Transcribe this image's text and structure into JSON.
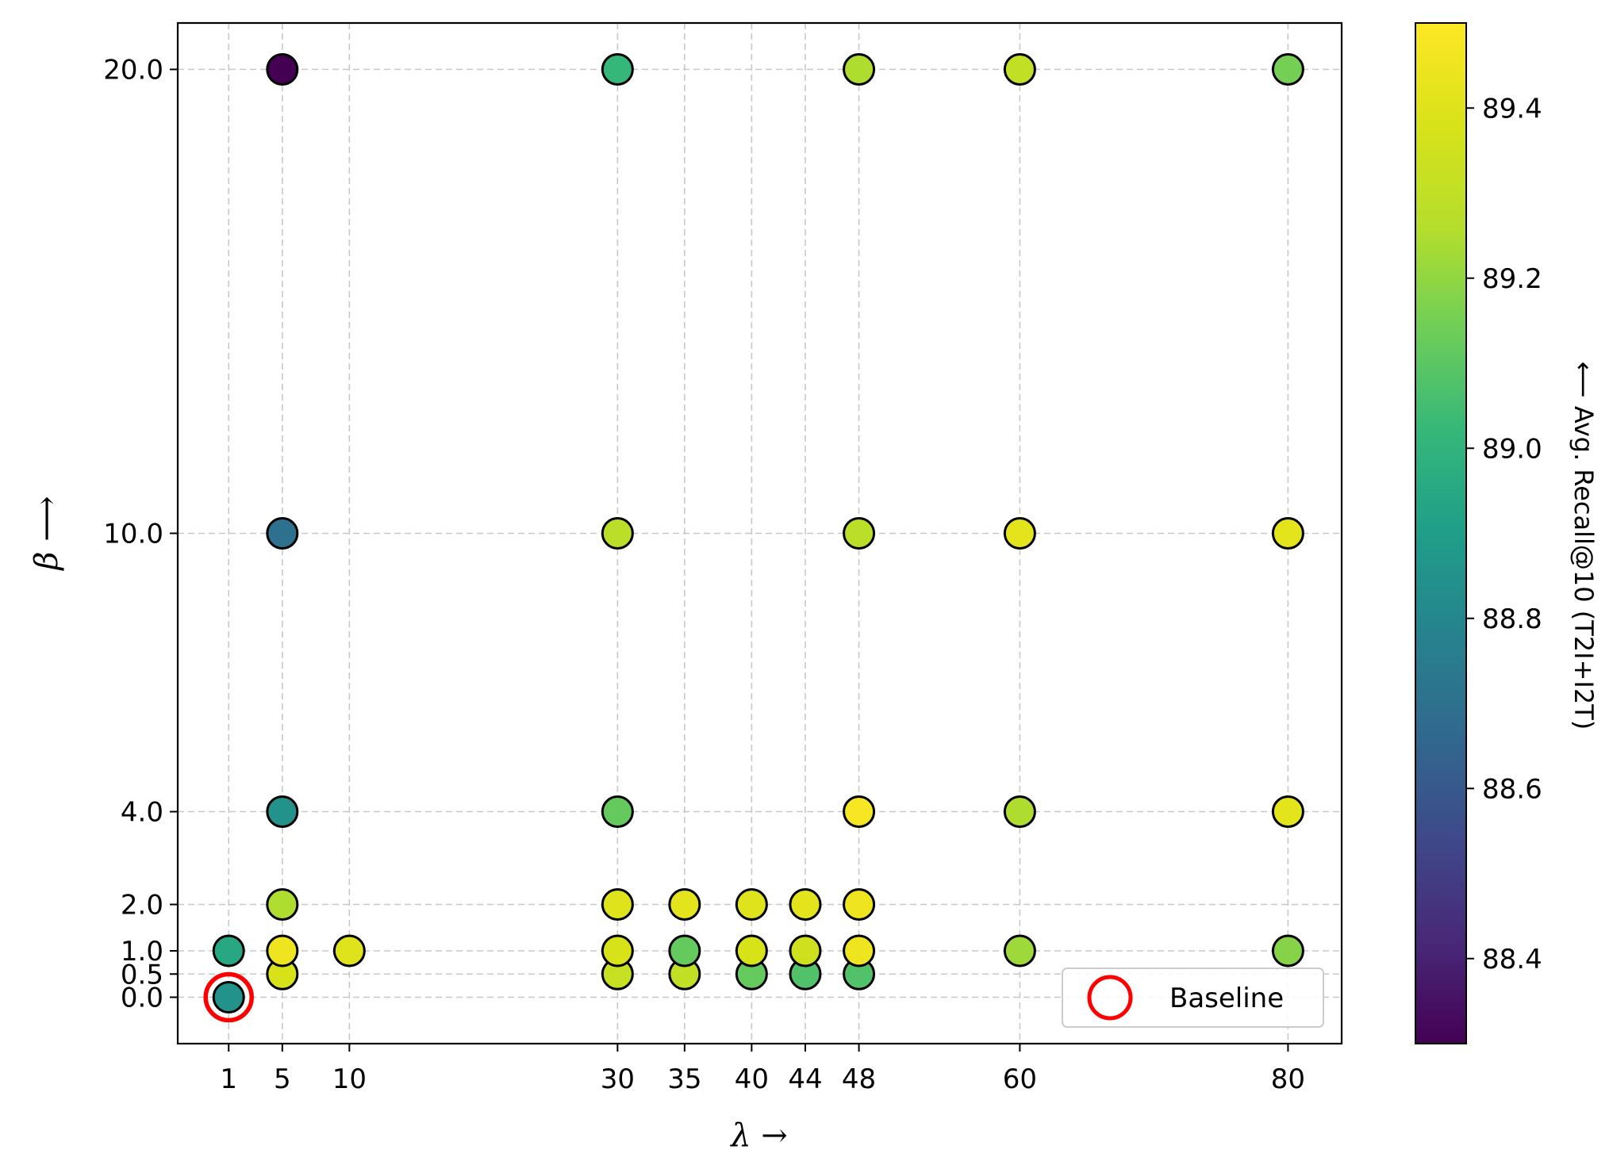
{
  "chart_data": {
    "type": "scatter",
    "x_axis": {
      "label": "λ →",
      "ticks": [
        1,
        5,
        10,
        30,
        35,
        40,
        44,
        48,
        60,
        80
      ],
      "tick_labels": [
        "1",
        "5",
        "10",
        "30",
        "35",
        "40",
        "44",
        "48",
        "60",
        "80"
      ],
      "range": [
        -2.8,
        84
      ]
    },
    "y_axis": {
      "label": "β ⟶",
      "ticks": [
        0.0,
        0.5,
        1.0,
        2.0,
        4.0,
        10.0,
        20.0
      ],
      "tick_labels": [
        "0.0",
        "0.5",
        "1.0",
        "2.0",
        "4.0",
        "10.0",
        "20.0"
      ],
      "range": [
        -1.0,
        21.0
      ]
    },
    "grid": true,
    "colorbar": {
      "label": "⟵  Avg. Recall@10 (T2I+I2T)",
      "colormap": "viridis",
      "range": [
        88.3,
        89.5
      ],
      "ticks": [
        88.4,
        88.6,
        88.8,
        89.0,
        89.2,
        89.4
      ],
      "tick_labels": [
        "88.4",
        "88.6",
        "88.8",
        "89.0",
        "89.2",
        "89.4"
      ]
    },
    "legend": {
      "placement": "lower right",
      "entries": [
        {
          "label": "Baseline",
          "marker": "hollow-circle",
          "color": "#ff0000"
        }
      ]
    },
    "baseline_point": {
      "x": 1,
      "y": 0.0
    },
    "points": [
      {
        "x": 1,
        "y": 0.0,
        "value": 88.85
      },
      {
        "x": 1,
        "y": 1.0,
        "value": 88.95
      },
      {
        "x": 5,
        "y": 0.5,
        "value": 89.38
      },
      {
        "x": 5,
        "y": 1.0,
        "value": 89.45
      },
      {
        "x": 5,
        "y": 2.0,
        "value": 89.25
      },
      {
        "x": 5,
        "y": 4.0,
        "value": 88.85
      },
      {
        "x": 5,
        "y": 10.0,
        "value": 88.7
      },
      {
        "x": 5,
        "y": 20.0,
        "value": 88.3
      },
      {
        "x": 10,
        "y": 1.0,
        "value": 89.4
      },
      {
        "x": 30,
        "y": 0.5,
        "value": 89.32
      },
      {
        "x": 30,
        "y": 1.0,
        "value": 89.38
      },
      {
        "x": 30,
        "y": 2.0,
        "value": 89.4
      },
      {
        "x": 30,
        "y": 4.0,
        "value": 89.12
      },
      {
        "x": 30,
        "y": 10.0,
        "value": 89.28
      },
      {
        "x": 30,
        "y": 20.0,
        "value": 89.02
      },
      {
        "x": 35,
        "y": 0.5,
        "value": 89.3
      },
      {
        "x": 35,
        "y": 1.0,
        "value": 89.12
      },
      {
        "x": 35,
        "y": 2.0,
        "value": 89.42
      },
      {
        "x": 40,
        "y": 0.5,
        "value": 89.12
      },
      {
        "x": 40,
        "y": 1.0,
        "value": 89.38
      },
      {
        "x": 40,
        "y": 2.0,
        "value": 89.4
      },
      {
        "x": 44,
        "y": 0.5,
        "value": 89.08
      },
      {
        "x": 44,
        "y": 1.0,
        "value": 89.35
      },
      {
        "x": 44,
        "y": 2.0,
        "value": 89.42
      },
      {
        "x": 48,
        "y": 0.5,
        "value": 89.08
      },
      {
        "x": 48,
        "y": 1.0,
        "value": 89.45
      },
      {
        "x": 48,
        "y": 2.0,
        "value": 89.45
      },
      {
        "x": 48,
        "y": 4.0,
        "value": 89.48
      },
      {
        "x": 48,
        "y": 10.0,
        "value": 89.28
      },
      {
        "x": 48,
        "y": 20.0,
        "value": 89.25
      },
      {
        "x": 60,
        "y": 1.0,
        "value": 89.22
      },
      {
        "x": 60,
        "y": 4.0,
        "value": 89.25
      },
      {
        "x": 60,
        "y": 10.0,
        "value": 89.42
      },
      {
        "x": 60,
        "y": 20.0,
        "value": 89.3
      },
      {
        "x": 80,
        "y": 1.0,
        "value": 89.18
      },
      {
        "x": 80,
        "y": 4.0,
        "value": 89.42
      },
      {
        "x": 80,
        "y": 10.0,
        "value": 89.42
      },
      {
        "x": 80,
        "y": 20.0,
        "value": 89.15
      }
    ]
  }
}
